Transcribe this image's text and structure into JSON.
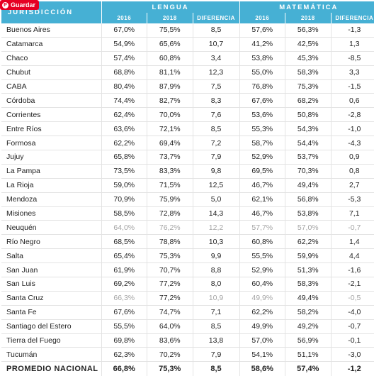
{
  "save_button": {
    "label": "Guardar",
    "icon": "pinterest-icon"
  },
  "header": {
    "jurisdiction": "JURISDICCIÓN",
    "groups": [
      "LENGUA",
      "MATEMÁTICA"
    ],
    "columns": [
      "2016",
      "2018",
      "DIFERENCIA",
      "2016",
      "2018",
      "DIFERENCIA"
    ]
  },
  "rows": [
    {
      "name": "Buenos Aires",
      "values": [
        "67,0%",
        "75,5%",
        "8,5",
        "57,6%",
        "56,3%",
        "-1,3"
      ]
    },
    {
      "name": "Catamarca",
      "values": [
        "54,9%",
        "65,6%",
        "10,7",
        "41,2%",
        "42,5%",
        "1,3"
      ]
    },
    {
      "name": "Chaco",
      "values": [
        "57,4%",
        "60,8%",
        "3,4",
        "53,8%",
        "45,3%",
        "-8,5"
      ]
    },
    {
      "name": "Chubut",
      "values": [
        "68,8%",
        "81,1%",
        "12,3",
        "55,0%",
        "58,3%",
        "3,3"
      ]
    },
    {
      "name": "CABA",
      "values": [
        "80,4%",
        "87,9%",
        "7,5",
        "76,8%",
        "75,3%",
        "-1,5"
      ]
    },
    {
      "name": "Córdoba",
      "values": [
        "74,4%",
        "82,7%",
        "8,3",
        "67,6%",
        "68,2%",
        "0,6"
      ]
    },
    {
      "name": "Corrientes",
      "values": [
        "62,4%",
        "70,0%",
        "7,6",
        "53,6%",
        "50,8%",
        "-2,8"
      ]
    },
    {
      "name": "Entre Ríos",
      "values": [
        "63,6%",
        "72,1%",
        "8,5",
        "55,3%",
        "54,3%",
        "-1,0"
      ]
    },
    {
      "name": "Formosa",
      "values": [
        "62,2%",
        "69,4%",
        "7,2",
        "58,7%",
        "54,4%",
        "-4,3"
      ]
    },
    {
      "name": "Jujuy",
      "values": [
        "65,8%",
        "73,7%",
        "7,9",
        "52,9%",
        "53,7%",
        "0,9"
      ]
    },
    {
      "name": "La Pampa",
      "values": [
        "73,5%",
        "83,3%",
        "9,8",
        "69,5%",
        "70,3%",
        "0,8"
      ]
    },
    {
      "name": "La Rioja",
      "values": [
        "59,0%",
        "71,5%",
        "12,5",
        "46,7%",
        "49,4%",
        "2,7"
      ]
    },
    {
      "name": "Mendoza",
      "values": [
        "70,9%",
        "75,9%",
        "5,0",
        "62,1%",
        "56,8%",
        "-5,3"
      ]
    },
    {
      "name": "Misiones",
      "values": [
        "58,5%",
        "72,8%",
        "14,3",
        "46,7%",
        "53,8%",
        "7,1"
      ]
    },
    {
      "name": "Neuquén",
      "values": [
        "64,0%",
        "76,2%",
        "12,2",
        "57,7%",
        "57,0%",
        "-0,7"
      ],
      "faded": [
        1,
        2,
        3,
        4,
        5,
        6
      ]
    },
    {
      "name": "Río Negro",
      "values": [
        "68,5%",
        "78,8%",
        "10,3",
        "60,8%",
        "62,2%",
        "1,4"
      ]
    },
    {
      "name": "Salta",
      "values": [
        "65,4%",
        "75,3%",
        "9,9",
        "55,5%",
        "59,9%",
        "4,4"
      ]
    },
    {
      "name": "San Juan",
      "values": [
        "61,9%",
        "70,7%",
        "8,8",
        "52,9%",
        "51,3%",
        "-1,6"
      ]
    },
    {
      "name": "San Luis",
      "values": [
        "69,2%",
        "77,2%",
        "8,0",
        "60,4%",
        "58,3%",
        "-2,1"
      ]
    },
    {
      "name": "Santa Cruz",
      "values": [
        "66,3%",
        "77,2%",
        "10,9",
        "49,9%",
        "49,4%",
        "-0,5"
      ],
      "faded": [
        1,
        3,
        4,
        6
      ]
    },
    {
      "name": "Santa Fe",
      "values": [
        "67,6%",
        "74,7%",
        "7,1",
        "62,2%",
        "58,2%",
        "-4,0"
      ]
    },
    {
      "name": "Santiago del Estero",
      "values": [
        "55,5%",
        "64,0%",
        "8,5",
        "49,9%",
        "49,2%",
        "-0,7"
      ]
    },
    {
      "name": "Tierra del Fuego",
      "values": [
        "69,8%",
        "83,6%",
        "13,8",
        "57,0%",
        "56,9%",
        "-0,1"
      ]
    },
    {
      "name": "Tucumán",
      "values": [
        "62,3%",
        "70,2%",
        "7,9",
        "54,1%",
        "51,1%",
        "-3,0"
      ]
    }
  ],
  "total": {
    "name": "PROMEDIO NACIONAL",
    "values": [
      "66,8%",
      "75,3%",
      "8,5",
      "58,6%",
      "57,4%",
      "-1,2"
    ]
  },
  "colors": {
    "header_bg": "#46b0d4",
    "save_button": "#e60023",
    "faded_text": "#a5a5a5"
  }
}
